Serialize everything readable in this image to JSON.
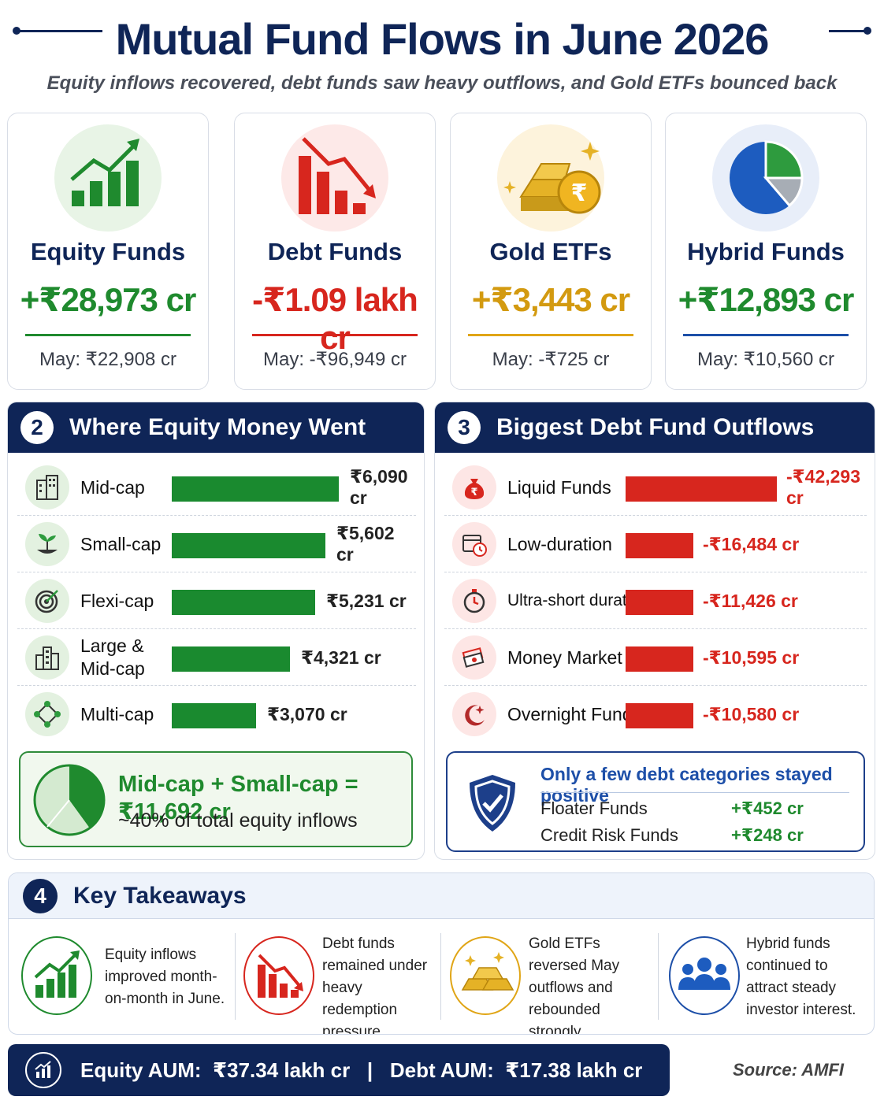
{
  "header": {
    "title": "Mutual Fund Flows in June 2026",
    "subtitle": "Equity inflows recovered, debt funds saw heavy outflows, and Gold ETFs bounced back"
  },
  "cards": [
    {
      "name": "Equity Funds",
      "value": "+₹28,973 cr",
      "prev": "May: ₹22,908 cr",
      "color": "#1f8a2e",
      "icon": "rising-bars-icon"
    },
    {
      "name": "Debt Funds",
      "value": "-₹1.09 lakh cr",
      "prev": "May: -₹96,949 cr",
      "color": "#d7261e",
      "icon": "falling-bars-icon"
    },
    {
      "name": "Gold ETFs",
      "value": "+₹3,443 cr",
      "prev": "May: -₹725 cr",
      "color": "#d39a10",
      "icon": "gold-bars-icon"
    },
    {
      "name": "Hybrid Funds",
      "value": "+₹12,893 cr",
      "prev": "May: ₹10,560 cr",
      "color": "#1f8a2e",
      "rule_color": "#1d4fa8",
      "icon": "pie-icon"
    }
  ],
  "equity": {
    "number": "2",
    "title": "Where Equity Money Went",
    "items": [
      {
        "label": "Mid-cap",
        "value_text": "₹6,090 cr",
        "value": 6090,
        "icon": "building-icon"
      },
      {
        "label": "Small-cap",
        "value_text": "₹5,602 cr",
        "value": 5602,
        "icon": "sprout-icon"
      },
      {
        "label": "Flexi-cap",
        "value_text": "₹5,231 cr",
        "value": 5231,
        "icon": "target-icon"
      },
      {
        "label": "Large & Mid-cap",
        "value_text": "₹4,321 cr",
        "value": 4321,
        "icon": "city-icon"
      },
      {
        "label": "Multi-cap",
        "value_text": "₹3,070 cr",
        "value": 3070,
        "icon": "network-icon"
      }
    ],
    "summary_line1": "Mid-cap + Small-cap = ₹11,692 cr",
    "summary_line2": "~40% of total equity inflows",
    "summary_share": 0.4
  },
  "debt": {
    "number": "3",
    "title": "Biggest Debt Fund Outflows",
    "items": [
      {
        "label": "Liquid Funds",
        "value_text": "-₹42,293 cr",
        "value": 42293,
        "icon": "money-bag-icon"
      },
      {
        "label": "Low-duration",
        "value_text": "-₹16,484 cr",
        "value": 16484,
        "icon": "calendar-clock-icon"
      },
      {
        "label": "Ultra-short duration",
        "value_text": "-₹11,426 cr",
        "value": 11426,
        "icon": "stopwatch-icon"
      },
      {
        "label": "Money Market",
        "value_text": "-₹10,595 cr",
        "value": 10595,
        "icon": "cash-stack-icon"
      },
      {
        "label": "Overnight Funds",
        "value_text": "-₹10,580 cr",
        "value": 10580,
        "icon": "moon-icon"
      }
    ],
    "positive_title": "Only a few debt categories stayed positive",
    "positive": [
      {
        "label": "Floater Funds",
        "value": "+₹452 cr"
      },
      {
        "label": "Credit Risk Funds",
        "value": "+₹248 cr"
      }
    ]
  },
  "takeaways": {
    "number": "4",
    "title": "Key Takeaways",
    "items": [
      {
        "text": "Equity inflows improved month-on-month in June.",
        "icon": "rising-bars-icon"
      },
      {
        "text": "Debt funds remained under heavy redemption pressure.",
        "icon": "falling-bars-icon"
      },
      {
        "text": "Gold ETFs reversed May outflows and rebounded strongly.",
        "icon": "gold-bars-icon"
      },
      {
        "text": "Hybrid funds continued to attract steady investor interest.",
        "icon": "people-icon"
      }
    ]
  },
  "footer": {
    "text": "Equity AUM:  ₹37.34 lakh cr   |   Debt AUM:  ₹17.38 lakh cr",
    "source": "Source: AMFI"
  },
  "colors": {
    "navy": "#0f2557",
    "green": "#1f8a2e",
    "red": "#d7261e",
    "gold": "#d39a10",
    "blue": "#1d4fa8"
  }
}
